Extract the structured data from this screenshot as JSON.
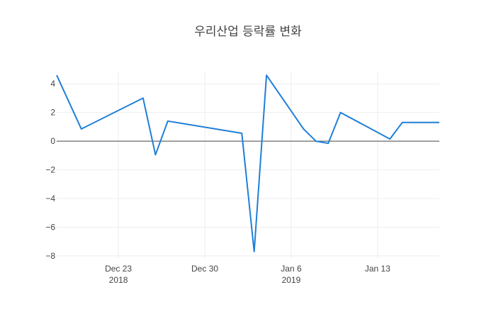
{
  "chart_data": {
    "type": "line",
    "title": "우리산업 등락률 변화",
    "xlabel": "",
    "ylabel": "",
    "x_range": [
      "2018-12-18",
      "2019-01-18"
    ],
    "ylim": [
      -8.2,
      4.9
    ],
    "grid": true,
    "zero_line": true,
    "legend": "none",
    "line_color": "#1f7fd8",
    "grid_color": "#eeeeee",
    "zeroline_color": "#444444",
    "y_ticks": [
      {
        "value": -8,
        "label": "−8"
      },
      {
        "value": -6,
        "label": "−6"
      },
      {
        "value": -4,
        "label": "−4"
      },
      {
        "value": -2,
        "label": "−2"
      },
      {
        "value": 0,
        "label": "0"
      },
      {
        "value": 2,
        "label": "2"
      },
      {
        "value": 4,
        "label": "4"
      }
    ],
    "x_ticks": [
      {
        "date": "2018-12-23",
        "label": "Dec 23",
        "sublabel": "2018"
      },
      {
        "date": "2018-12-30",
        "label": "Dec 30",
        "sublabel": ""
      },
      {
        "date": "2019-01-06",
        "label": "Jan 6",
        "sublabel": "2019"
      },
      {
        "date": "2019-01-13",
        "label": "Jan 13",
        "sublabel": ""
      }
    ],
    "series": [
      {
        "x": [
          "2018-12-18",
          "2018-12-20",
          "2018-12-25",
          "2018-12-26",
          "2018-12-27",
          "2019-01-02",
          "2019-01-03",
          "2019-01-04",
          "2019-01-07",
          "2019-01-08",
          "2019-01-09",
          "2019-01-10",
          "2019-01-14",
          "2019-01-15",
          "2019-01-18"
        ],
        "values": [
          4.6,
          0.85,
          3.0,
          -0.95,
          1.4,
          0.55,
          -7.7,
          4.6,
          0.85,
          0.0,
          -0.15,
          2.0,
          0.15,
          1.3,
          1.3
        ]
      }
    ]
  }
}
